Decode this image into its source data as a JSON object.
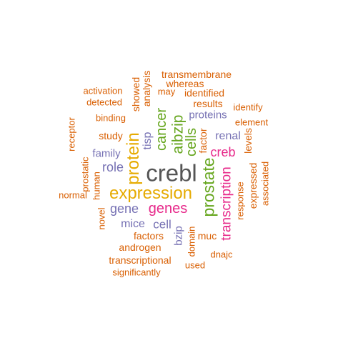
{
  "colors": {
    "orange": "#d95f02",
    "gold": "#e6ab02",
    "green": "#66a61e",
    "purple": "#7570b3",
    "magenta": "#e7298a",
    "dark": "#555555"
  },
  "words": [
    {
      "id": "crebl",
      "text": "crebl",
      "color": "#555555"
    },
    {
      "id": "expression",
      "text": "expression",
      "color": "#e6ab02"
    },
    {
      "id": "genes",
      "text": "genes",
      "color": "#e7298a"
    },
    {
      "id": "protein",
      "text": "protein",
      "color": "#e6ab02"
    },
    {
      "id": "prostate",
      "text": "prostate",
      "color": "#66a61e"
    },
    {
      "id": "aibzip",
      "text": "aibzip",
      "color": "#66a61e"
    },
    {
      "id": "cancer",
      "text": "cancer",
      "color": "#66a61e"
    },
    {
      "id": "cells",
      "text": "cells",
      "color": "#66a61e"
    },
    {
      "id": "transcription",
      "text": "transcription",
      "color": "#e7298a"
    },
    {
      "id": "creb",
      "text": "creb",
      "color": "#e7298a"
    },
    {
      "id": "role",
      "text": "role",
      "color": "#7570b3"
    },
    {
      "id": "gene",
      "text": "gene",
      "color": "#7570b3"
    },
    {
      "id": "cell",
      "text": "cell",
      "color": "#7570b3"
    },
    {
      "id": "family",
      "text": "family",
      "color": "#7570b3"
    },
    {
      "id": "renal",
      "text": "renal",
      "color": "#7570b3"
    },
    {
      "id": "tisp",
      "text": "tisp",
      "color": "#7570b3"
    },
    {
      "id": "mice",
      "text": "mice",
      "color": "#7570b3"
    },
    {
      "id": "proteins",
      "text": "proteins",
      "color": "#7570b3"
    },
    {
      "id": "bzip",
      "text": "bzip",
      "color": "#7570b3"
    },
    {
      "id": "transmembrane",
      "text": "transmembrane",
      "color": "#d95f02"
    },
    {
      "id": "whereas",
      "text": "whereas",
      "color": "#d95f02"
    },
    {
      "id": "activation",
      "text": "activation",
      "color": "#d95f02"
    },
    {
      "id": "showed",
      "text": "showed",
      "color": "#d95f02"
    },
    {
      "id": "analysis",
      "text": "analysis",
      "color": "#d95f02"
    },
    {
      "id": "may",
      "text": "may",
      "color": "#d95f02"
    },
    {
      "id": "identified",
      "text": "identified",
      "color": "#d95f02"
    },
    {
      "id": "detected",
      "text": "detected",
      "color": "#d95f02"
    },
    {
      "id": "results",
      "text": "results",
      "color": "#d95f02"
    },
    {
      "id": "identify",
      "text": "identify",
      "color": "#d95f02"
    },
    {
      "id": "binding",
      "text": "binding",
      "color": "#d95f02"
    },
    {
      "id": "element",
      "text": "element",
      "color": "#d95f02"
    },
    {
      "id": "receptor",
      "text": "receptor",
      "color": "#d95f02"
    },
    {
      "id": "study",
      "text": "study",
      "color": "#d95f02"
    },
    {
      "id": "factor",
      "text": "factor",
      "color": "#d95f02"
    },
    {
      "id": "levels",
      "text": "levels",
      "color": "#d95f02"
    },
    {
      "id": "prostatic",
      "text": "prostatic",
      "color": "#d95f02"
    },
    {
      "id": "human",
      "text": "human",
      "color": "#d95f02"
    },
    {
      "id": "expressed",
      "text": "expressed",
      "color": "#d95f02"
    },
    {
      "id": "associated",
      "text": "associated",
      "color": "#d95f02"
    },
    {
      "id": "response",
      "text": "response",
      "color": "#d95f02"
    },
    {
      "id": "normal",
      "text": "normal",
      "color": "#d95f02"
    },
    {
      "id": "novel",
      "text": "novel",
      "color": "#d95f02"
    },
    {
      "id": "factors",
      "text": "factors",
      "color": "#d95f02"
    },
    {
      "id": "muc",
      "text": "muc",
      "color": "#d95f02"
    },
    {
      "id": "androgen",
      "text": "androgen",
      "color": "#d95f02"
    },
    {
      "id": "domain",
      "text": "domain",
      "color": "#d95f02"
    },
    {
      "id": "dnajc",
      "text": "dnajc",
      "color": "#d95f02"
    },
    {
      "id": "transcriptional",
      "text": "transcriptional",
      "color": "#d95f02"
    },
    {
      "id": "used",
      "text": "used",
      "color": "#d95f02"
    },
    {
      "id": "significantly",
      "text": "significantly",
      "color": "#d95f02"
    }
  ]
}
